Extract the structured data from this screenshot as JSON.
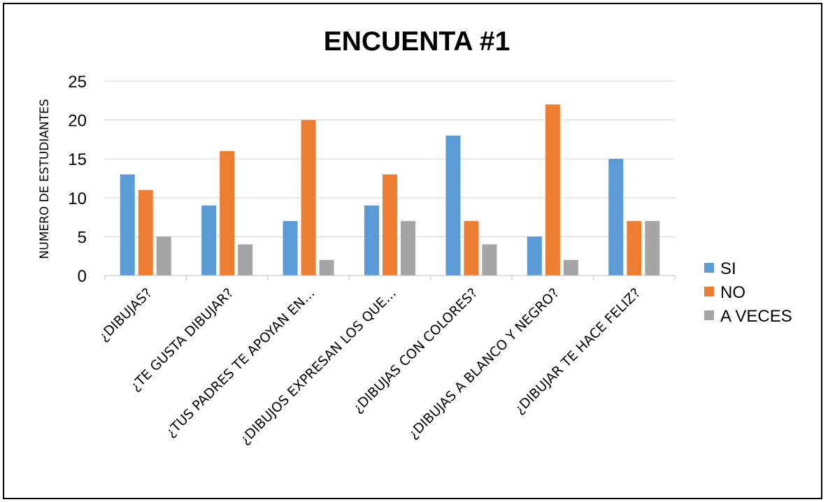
{
  "chart_data": {
    "type": "bar",
    "title": "ENCUENTA #1",
    "ylabel": "NUMERO DE ESTUDIANTES",
    "xlabel": "",
    "ylim": [
      0,
      25
    ],
    "yticks": [
      0,
      5,
      10,
      15,
      20,
      25
    ],
    "grid": true,
    "legend_position": "right",
    "categories": [
      "¿DIBUJAS?",
      "¿TE GUSTA DIBUJAR?",
      "¿TUS PADRES TE APOYAN EN…",
      "¿DIBUJOS EXPRESAN LOS QUE…",
      "¿DIBUJAS CON COLORES?",
      "¿DIBUJAS A BLANCO Y NEGRO?",
      "¿DIBUJAR TE HACE FELIZ?"
    ],
    "series": [
      {
        "name": "SI",
        "color": "#5B9BD5",
        "values": [
          13,
          9,
          7,
          9,
          18,
          5,
          15
        ]
      },
      {
        "name": "NO",
        "color": "#ED7D31",
        "values": [
          11,
          16,
          20,
          13,
          7,
          22,
          7
        ]
      },
      {
        "name": "A VECES",
        "color": "#A5A5A5",
        "values": [
          5,
          4,
          2,
          7,
          4,
          2,
          7
        ]
      }
    ]
  }
}
